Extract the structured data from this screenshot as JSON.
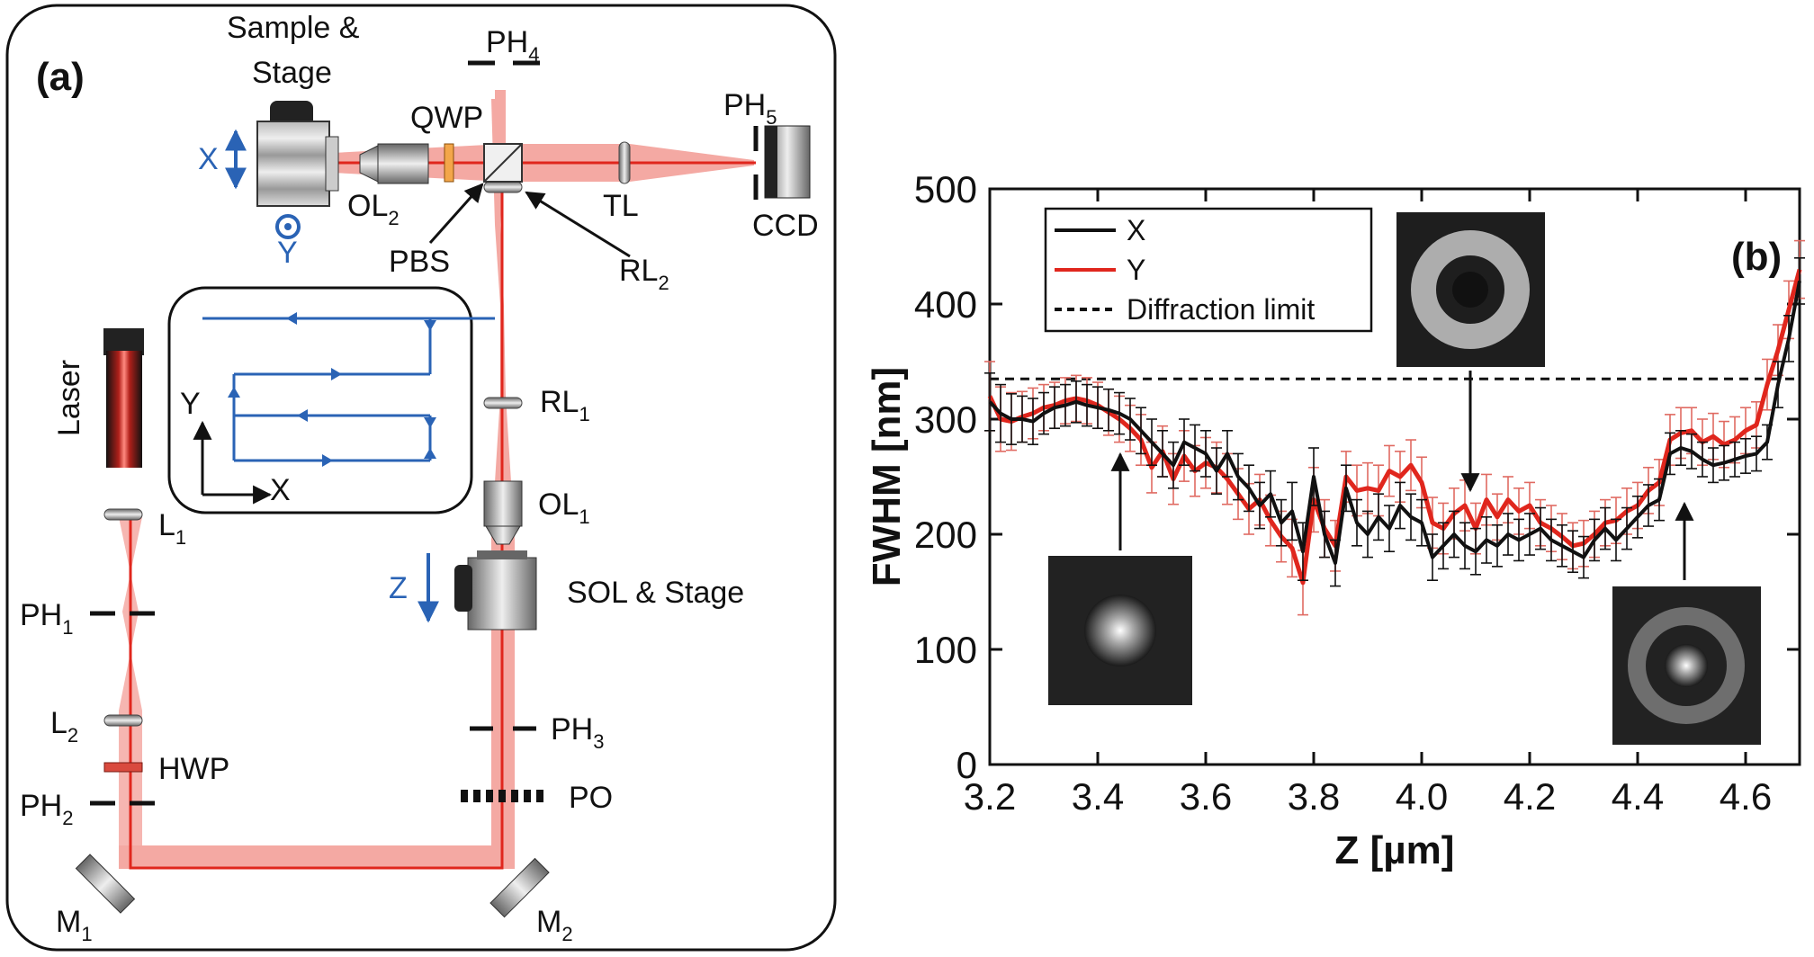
{
  "panel_a": {
    "letter": "(a)",
    "labels": {
      "sample_stage_line1": "Sample &",
      "sample_stage_line2": "Stage",
      "ph4": "PH",
      "ph4_sub": "4",
      "qwp": "QWP",
      "ph5": "PH",
      "ph5_sub": "5",
      "x_axis": "X",
      "y_axis": "Y",
      "ol2": "OL",
      "ol2_sub": "2",
      "pbs": "PBS",
      "tl": "TL",
      "ccd": "CCD",
      "rl2": "RL",
      "rl2_sub": "2",
      "laser": "Laser",
      "rl1": "RL",
      "rl1_sub": "1",
      "ol1": "OL",
      "ol1_sub": "1",
      "l1": "L",
      "l1_sub": "1",
      "z_axis": "Z",
      "sol_stage": "SOL & Stage",
      "ph1": "PH",
      "ph1_sub": "1",
      "l2": "L",
      "l2_sub": "2",
      "ph3": "PH",
      "ph3_sub": "3",
      "hwp": "HWP",
      "po": "PO",
      "ph2": "PH",
      "ph2_sub": "2",
      "m1": "M",
      "m1_sub": "1",
      "m2": "M",
      "m2_sub": "2",
      "scan_y": "Y",
      "scan_x": "X"
    },
    "colors": {
      "beam_halo": "#f4a9a3",
      "beam_core": "#e0261d",
      "axis_blue": "#2a63b5"
    }
  },
  "panel_b": {
    "letter": "(b)",
    "inset_images": [
      "focal-spot-3.4",
      "ring-spot-4.05",
      "ring-spot-4.45"
    ]
  },
  "chart_data": {
    "type": "line",
    "xlabel": "Z [µm]",
    "ylabel": "FWHM [nm]",
    "xlim": [
      3.2,
      4.7
    ],
    "ylim": [
      0,
      500
    ],
    "xticks": [
      "3.2",
      "3.4",
      "3.6",
      "3.8",
      "4.0",
      "4.2",
      "4.4",
      "4.6"
    ],
    "yticks": [
      "0",
      "100",
      "200",
      "300",
      "400",
      "500"
    ],
    "legend": {
      "placement": "top-left",
      "entries": [
        "X",
        "Y",
        "Diffraction limit"
      ]
    },
    "x": [
      3.2,
      3.22,
      3.24,
      3.26,
      3.28,
      3.3,
      3.32,
      3.34,
      3.36,
      3.38,
      3.4,
      3.42,
      3.44,
      3.46,
      3.48,
      3.5,
      3.52,
      3.54,
      3.56,
      3.58,
      3.6,
      3.62,
      3.64,
      3.66,
      3.68,
      3.7,
      3.72,
      3.74,
      3.76,
      3.78,
      3.8,
      3.82,
      3.84,
      3.86,
      3.88,
      3.9,
      3.92,
      3.94,
      3.96,
      3.98,
      4.0,
      4.02,
      4.04,
      4.06,
      4.08,
      4.1,
      4.12,
      4.14,
      4.16,
      4.18,
      4.2,
      4.22,
      4.24,
      4.26,
      4.28,
      4.3,
      4.32,
      4.34,
      4.36,
      4.38,
      4.4,
      4.42,
      4.44,
      4.46,
      4.48,
      4.5,
      4.52,
      4.54,
      4.56,
      4.58,
      4.6,
      4.62,
      4.64,
      4.66,
      4.68,
      4.7
    ],
    "series": [
      {
        "name": "X",
        "color": "#111111",
        "values": [
          315,
          305,
          300,
          300,
          298,
          305,
          310,
          312,
          315,
          312,
          310,
          308,
          305,
          300,
          290,
          280,
          270,
          260,
          280,
          275,
          270,
          255,
          270,
          250,
          240,
          225,
          235,
          210,
          220,
          185,
          250,
          200,
          175,
          240,
          210,
          200,
          215,
          205,
          225,
          215,
          210,
          180,
          190,
          200,
          190,
          185,
          195,
          190,
          200,
          195,
          200,
          205,
          195,
          190,
          185,
          180,
          195,
          205,
          195,
          205,
          215,
          225,
          230,
          270,
          275,
          272,
          265,
          260,
          262,
          265,
          268,
          270,
          280,
          330,
          370,
          420
        ],
        "errors": [
          25,
          25,
          22,
          20,
          20,
          18,
          18,
          18,
          18,
          18,
          18,
          18,
          18,
          18,
          20,
          20,
          20,
          20,
          20,
          20,
          20,
          20,
          20,
          20,
          20,
          20,
          20,
          20,
          25,
          25,
          25,
          20,
          20,
          20,
          20,
          20,
          20,
          20,
          20,
          20,
          20,
          20,
          20,
          20,
          20,
          20,
          20,
          18,
          18,
          18,
          18,
          18,
          18,
          18,
          18,
          18,
          18,
          18,
          18,
          18,
          18,
          18,
          18,
          18,
          15,
          15,
          15,
          15,
          15,
          15,
          15,
          15,
          15,
          20,
          20,
          20
        ]
      },
      {
        "name": "Y",
        "color": "#e0261d",
        "values": [
          320,
          300,
          298,
          302,
          305,
          310,
          312,
          316,
          318,
          316,
          312,
          306,
          300,
          292,
          282,
          258,
          272,
          248,
          268,
          255,
          262,
          258,
          248,
          235,
          222,
          230,
          212,
          198,
          188,
          158,
          230,
          205,
          190,
          250,
          238,
          240,
          238,
          255,
          250,
          260,
          245,
          210,
          205,
          218,
          225,
          205,
          230,
          215,
          230,
          220,
          225,
          210,
          205,
          198,
          190,
          192,
          200,
          210,
          212,
          220,
          225,
          238,
          245,
          282,
          288,
          290,
          280,
          285,
          278,
          282,
          290,
          295,
          330,
          360,
          395,
          430
        ],
        "errors": [
          30,
          28,
          25,
          22,
          22,
          20,
          20,
          20,
          20,
          20,
          20,
          20,
          20,
          20,
          22,
          22,
          22,
          22,
          22,
          22,
          22,
          22,
          22,
          22,
          22,
          22,
          22,
          22,
          25,
          28,
          28,
          25,
          22,
          22,
          22,
          22,
          22,
          22,
          22,
          22,
          22,
          22,
          22,
          22,
          22,
          22,
          22,
          20,
          20,
          20,
          20,
          20,
          20,
          20,
          20,
          20,
          20,
          20,
          20,
          20,
          20,
          20,
          20,
          22,
          22,
          20,
          20,
          20,
          20,
          20,
          20,
          20,
          22,
          22,
          25,
          25
        ]
      },
      {
        "name": "Diffraction limit",
        "style": "dashed",
        "constant": 335
      }
    ]
  }
}
